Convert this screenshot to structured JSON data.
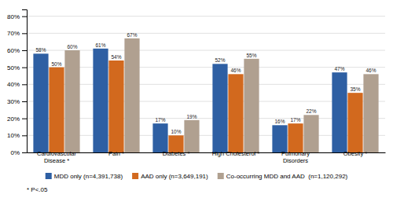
{
  "chart_data": {
    "type": "bar",
    "categories": [
      "Cardiovascular\nDisease *",
      "Pain *",
      "Diabetes *",
      "High Cholesterol *",
      "Pulmonary\nDisorders",
      "Obesity *"
    ],
    "series": [
      {
        "name": "MDD only (n=4,391,738)",
        "color": "#2E5FA3",
        "values": [
          58,
          61,
          17,
          52,
          16,
          47
        ],
        "value_labels": [
          "58%",
          "61%",
          "17%",
          "52%",
          "16%",
          "47%"
        ]
      },
      {
        "name": "AAD only (n=3,649,191)",
        "color": "#D2691E",
        "values": [
          50,
          54,
          10,
          46,
          17,
          35
        ],
        "value_labels": [
          "50%",
          "54%",
          "10%",
          "46%",
          "17%",
          "35%"
        ]
      },
      {
        "name": "Co-occurring MDD and AAD  (n=1,120,292)",
        "color": "#B0A090",
        "values": [
          60,
          67,
          19,
          55,
          22,
          46
        ],
        "value_labels": [
          "60%",
          "67%",
          "19%",
          "55%",
          "22%",
          "46%"
        ]
      }
    ],
    "ylim": [
      0,
      84
    ],
    "yticks": [
      {
        "value": 0,
        "label": "0%"
      },
      {
        "value": 10,
        "label": "10%"
      },
      {
        "value": 20,
        "label": "20%"
      },
      {
        "value": 30,
        "label": "30%"
      },
      {
        "value": 40,
        "label": "40%"
      },
      {
        "value": 50,
        "label": "50%"
      },
      {
        "value": 60,
        "label": "60%"
      },
      {
        "value": 70,
        "label": "70%"
      },
      {
        "value": 80,
        "label": "80%"
      }
    ],
    "grid": true,
    "data_labels": true,
    "legend": "bottom",
    "annotations": [
      "* P<.05"
    ]
  }
}
